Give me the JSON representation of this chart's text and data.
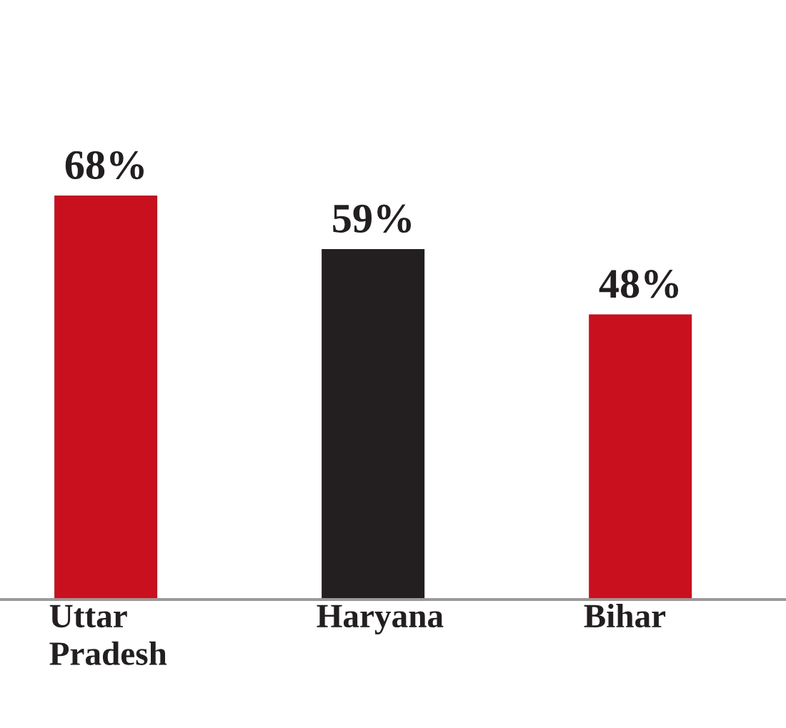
{
  "chart_data": {
    "type": "bar",
    "categories": [
      "Uttar\nPradesh",
      "Haryana",
      "Bihar"
    ],
    "values": [
      68,
      59,
      48
    ],
    "colors": [
      "#c8101e",
      "#231f20",
      "#c8101e"
    ],
    "value_labels": [
      "68%",
      "59%",
      "48%"
    ]
  }
}
